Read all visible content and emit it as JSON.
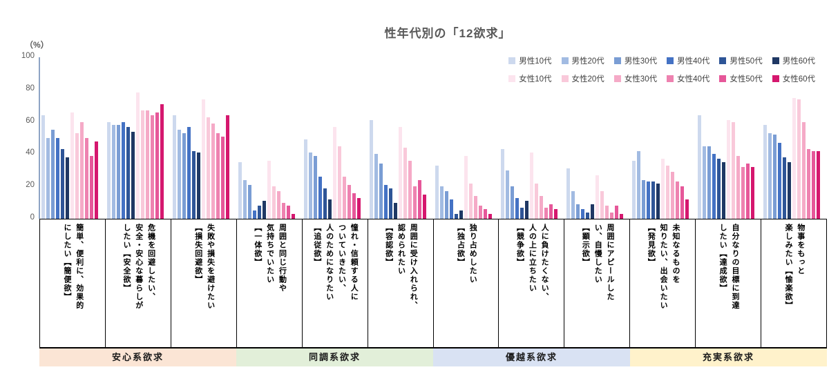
{
  "page": {
    "title": "性年代別の「12欲求」"
  },
  "chart_data": {
    "type": "bar",
    "title": "性年代別の「12欲求」",
    "unit": "（%）",
    "ylim": [
      0,
      100
    ],
    "yticks": [
      0,
      20,
      40,
      60,
      80,
      100
    ],
    "grid": false,
    "legend_position": "top-right",
    "axis_color": "#8da4c4",
    "series": [
      {
        "name": "男性10代",
        "color": "#cdd9ee",
        "values": [
          64,
          60,
          64,
          35,
          49,
          61,
          33,
          43,
          31,
          36,
          64,
          58
        ]
      },
      {
        "name": "男性20代",
        "color": "#a2bbe2",
        "values": [
          50,
          58,
          55,
          24,
          41,
          40,
          20,
          30,
          17,
          42,
          45,
          53
        ]
      },
      {
        "name": "男性30代",
        "color": "#7a9dd4",
        "values": [
          55,
          58,
          53,
          21,
          39,
          34,
          17,
          20,
          9,
          24,
          45,
          52
        ]
      },
      {
        "name": "男性40代",
        "color": "#4472c4",
        "values": [
          50,
          60,
          57,
          5,
          26,
          21,
          12,
          13,
          6,
          23,
          40,
          47
        ]
      },
      {
        "name": "男性50代",
        "color": "#2e5597",
        "values": [
          43,
          57,
          42,
          8,
          19,
          19,
          3,
          7,
          4,
          23,
          37,
          38
        ]
      },
      {
        "name": "男性60代",
        "color": "#1f3864",
        "values": [
          38,
          54,
          41,
          11,
          12,
          10,
          5,
          11,
          9,
          22,
          35,
          35
        ]
      },
      {
        "name": "女性10代",
        "color": "#fce4ee",
        "values": [
          66,
          78,
          74,
          36,
          57,
          57,
          39,
          41,
          27,
          37,
          61,
          75
        ]
      },
      {
        "name": "女性20代",
        "color": "#f9c9da",
        "values": [
          53,
          67,
          63,
          20,
          45,
          44,
          22,
          22,
          17,
          33,
          60,
          74
        ]
      },
      {
        "name": "女性30代",
        "color": "#f5aac7",
        "values": [
          60,
          67,
          59,
          17,
          26,
          36,
          14,
          14,
          8,
          29,
          39,
          60
        ]
      },
      {
        "name": "女性40代",
        "color": "#ee82b0",
        "values": [
          50,
          64,
          53,
          10,
          21,
          20,
          8,
          7,
          4,
          23,
          32,
          43
        ]
      },
      {
        "name": "女性50代",
        "color": "#e65799",
        "values": [
          39,
          66,
          51,
          8,
          16,
          24,
          6,
          9,
          8,
          20,
          34,
          42
        ]
      },
      {
        "name": "女性60代",
        "color": "#d5176e",
        "values": [
          48,
          71,
          64,
          3,
          13,
          15,
          3,
          6,
          3,
          12,
          32,
          42
        ]
      }
    ],
    "categories": [
      {
        "label": "簡単、便利に、効果的\nにしたい【簡便欲】",
        "band": "安心系欲求"
      },
      {
        "label": "危機を回避したい、\n安全・安心な暮らしが\nしたい【安全欲】",
        "band": "安心系欲求"
      },
      {
        "label": "失敗や損失を避けたい\n【損失回避欲】",
        "band": "安心系欲求"
      },
      {
        "label": "周囲と同じ行動や\n気持ちでいたい\n【一体欲】",
        "band": "同調系欲求"
      },
      {
        "label": "憧れ・信頼する人に\nついていきたい、\n人のためになりたい\n【追従欲】",
        "band": "同調系欲求"
      },
      {
        "label": "周囲に受け入れられ、\n認められたい\n【容認欲】",
        "band": "同調系欲求"
      },
      {
        "label": "独り占めしたい\n【独占欲】",
        "band": "優越系欲求"
      },
      {
        "label": "人に負けたくない、\n人の上に立ちたい\n【競争欲】",
        "band": "優越系欲求"
      },
      {
        "label": "周囲にアピールした\nい、自慢したい\n【顕示欲】",
        "band": "優越系欲求"
      },
      {
        "label": "未知なるものを\n知りたい、出会いたい\n【発見欲】",
        "band": "充実系欲求"
      },
      {
        "label": "自分なりの目標に到達\nしたい【達成欲】",
        "band": "充実系欲求"
      },
      {
        "label": "物事をもっと\n楽しみたい【愉楽欲】",
        "band": "充実系欲求"
      }
    ],
    "bands": [
      {
        "label": "安心系欲求",
        "color": "#fbe5d5",
        "span": 3
      },
      {
        "label": "同調系欲求",
        "color": "#e2efd9",
        "span": 3
      },
      {
        "label": "優越系欲求",
        "color": "#d9e2f3",
        "span": 3
      },
      {
        "label": "充実系欲求",
        "color": "#fff2cb",
        "span": 3
      }
    ]
  }
}
